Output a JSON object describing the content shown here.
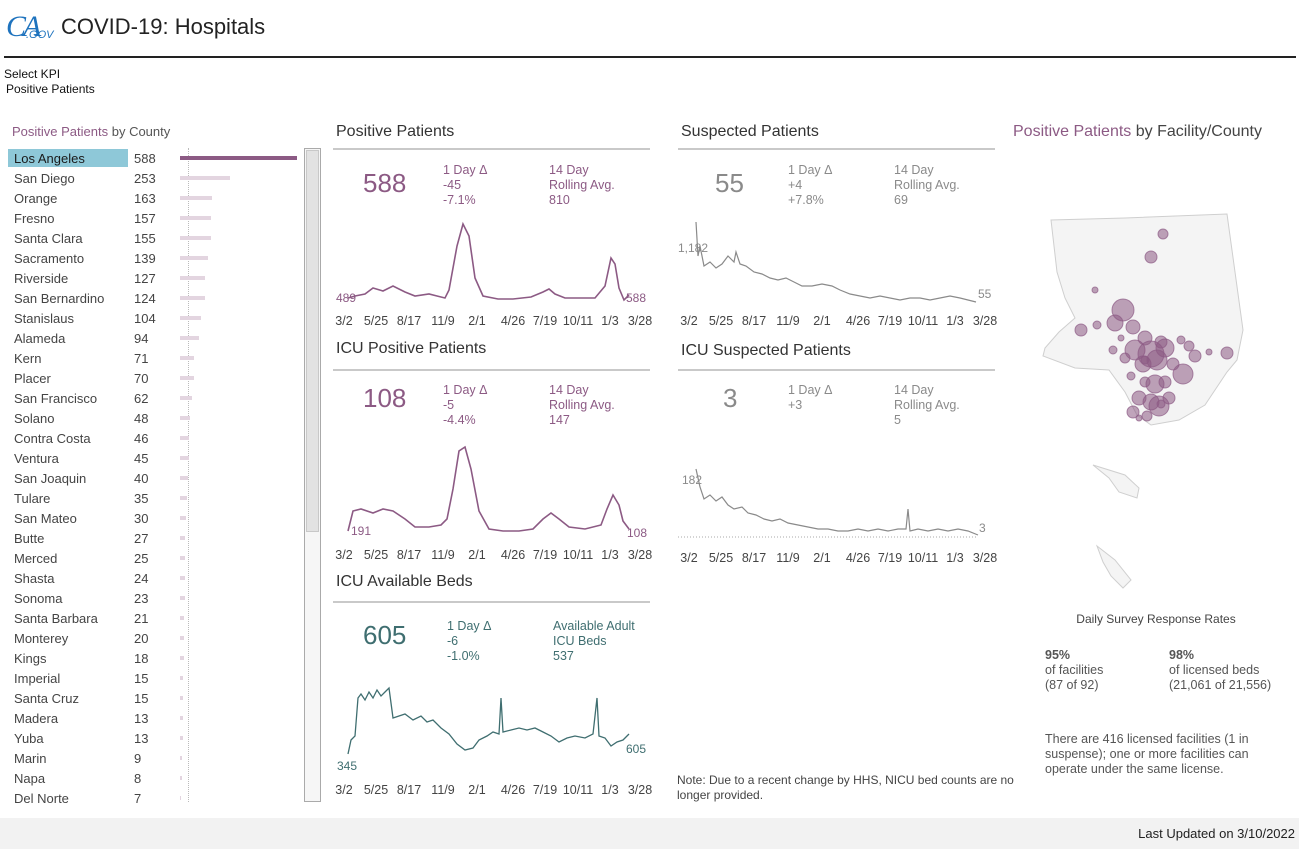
{
  "header": {
    "logo_ca": "CA",
    "logo_gov": ".GOV",
    "title": "COVID-19: Hospitals"
  },
  "kpi": {
    "label": "Select KPI",
    "value": "Positive Patients"
  },
  "county_panel": {
    "title_accent": "Positive Patients",
    "title_rest": " by County",
    "max": 588,
    "counties": [
      {
        "name": "Los Angeles",
        "value": 588,
        "selected": true
      },
      {
        "name": "San Diego",
        "value": 253
      },
      {
        "name": "Orange",
        "value": 163
      },
      {
        "name": "Fresno",
        "value": 157
      },
      {
        "name": "Santa Clara",
        "value": 155
      },
      {
        "name": "Sacramento",
        "value": 139
      },
      {
        "name": "Riverside",
        "value": 127
      },
      {
        "name": "San Bernardino",
        "value": 124
      },
      {
        "name": "Stanislaus",
        "value": 104
      },
      {
        "name": "Alameda",
        "value": 94
      },
      {
        "name": "Kern",
        "value": 71
      },
      {
        "name": "Placer",
        "value": 70
      },
      {
        "name": "San Francisco",
        "value": 62
      },
      {
        "name": "Solano",
        "value": 48
      },
      {
        "name": "Contra Costa",
        "value": 46
      },
      {
        "name": "Ventura",
        "value": 45
      },
      {
        "name": "San Joaquin",
        "value": 40
      },
      {
        "name": "Tulare",
        "value": 35
      },
      {
        "name": "San Mateo",
        "value": 30
      },
      {
        "name": "Butte",
        "value": 27
      },
      {
        "name": "Merced",
        "value": 25
      },
      {
        "name": "Shasta",
        "value": 24
      },
      {
        "name": "Sonoma",
        "value": 23
      },
      {
        "name": "Santa Barbara",
        "value": 21
      },
      {
        "name": "Monterey",
        "value": 20
      },
      {
        "name": "Kings",
        "value": 18
      },
      {
        "name": "Imperial",
        "value": 15
      },
      {
        "name": "Santa Cruz",
        "value": 15
      },
      {
        "name": "Madera",
        "value": 13
      },
      {
        "name": "Yuba",
        "value": 13
      },
      {
        "name": "Marin",
        "value": 9
      },
      {
        "name": "Napa",
        "value": 8
      },
      {
        "name": "Del Norte",
        "value": 7
      }
    ]
  },
  "x_ticks": [
    "3/2",
    "5/25",
    "8/17",
    "11/9",
    "2/1",
    "4/26",
    "7/19",
    "10/11",
    "1/3",
    "3/28"
  ],
  "cards": {
    "positive": {
      "title": "Positive Patients",
      "value": "588",
      "delta_label": "1 Day Δ",
      "delta_abs": "-45",
      "delta_pct": "-7.1%",
      "avg_label_1": "14 Day",
      "avg_label_2": "Rolling Avg.",
      "avg_value": "810",
      "start_label": "489",
      "end_label": "588",
      "color": "#8c5a84"
    },
    "icu_positive": {
      "title": "ICU Positive Patients",
      "value": "108",
      "delta_label": "1 Day Δ",
      "delta_abs": "-5",
      "delta_pct": "-4.4%",
      "avg_label_1": "14 Day",
      "avg_label_2": "Rolling Avg.",
      "avg_value": "147",
      "start_label": "191",
      "end_label": "108",
      "color": "#8c5a84"
    },
    "icu_beds": {
      "title": "ICU Available Beds",
      "value": "605",
      "delta_label": "1 Day Δ",
      "delta_abs": "-6",
      "delta_pct": "-1.0%",
      "avg_label_1": "Available Adult",
      "avg_label_2": "ICU Beds",
      "avg_value": "537",
      "start_label": "345",
      "end_label": "605",
      "color": "#3f6e70"
    },
    "suspected": {
      "title": "Suspected Patients",
      "value": "55",
      "delta_label": "1 Day Δ",
      "delta_abs": "+4",
      "delta_pct": "+7.8%",
      "avg_label_1": "14 Day",
      "avg_label_2": "Rolling Avg.",
      "avg_value": "69",
      "start_label": "1,182",
      "end_label": "55",
      "color": "#8a8a8a"
    },
    "icu_suspected": {
      "title": "ICU Suspected Patients",
      "value": "3",
      "delta_label": "1 Day Δ",
      "delta_abs": "+3",
      "delta_pct": "",
      "avg_label_1": "14 Day",
      "avg_label_2": "Rolling Avg.",
      "avg_value": "5",
      "start_label": "182",
      "end_label": "3",
      "color": "#8a8a8a"
    }
  },
  "note": "Note: Due to a recent change by HHS, NICU bed counts are no longer provided.",
  "map_panel": {
    "title_accent": "Positive Patients",
    "title_rest": " by Facility/County",
    "survey_title": "Daily Survey Response Rates",
    "facilities_pct": "95%",
    "facilities_label": "of facilities",
    "facilities_count": "(87 of 92)",
    "beds_pct": "98%",
    "beds_label": "of licensed beds",
    "beds_count": "(21,061 of 21,556)",
    "facility_note": "There are 416 licensed facilities (1 in suspense); one or more facilities can operate under the same license."
  },
  "footer": {
    "updated": "Last Updated on 3/10/2022"
  },
  "colors": {
    "positive": "#8c5a84",
    "beds": "#3f6e70",
    "suspected": "#8a8a8a",
    "highlight": "#8ec8d8"
  }
}
